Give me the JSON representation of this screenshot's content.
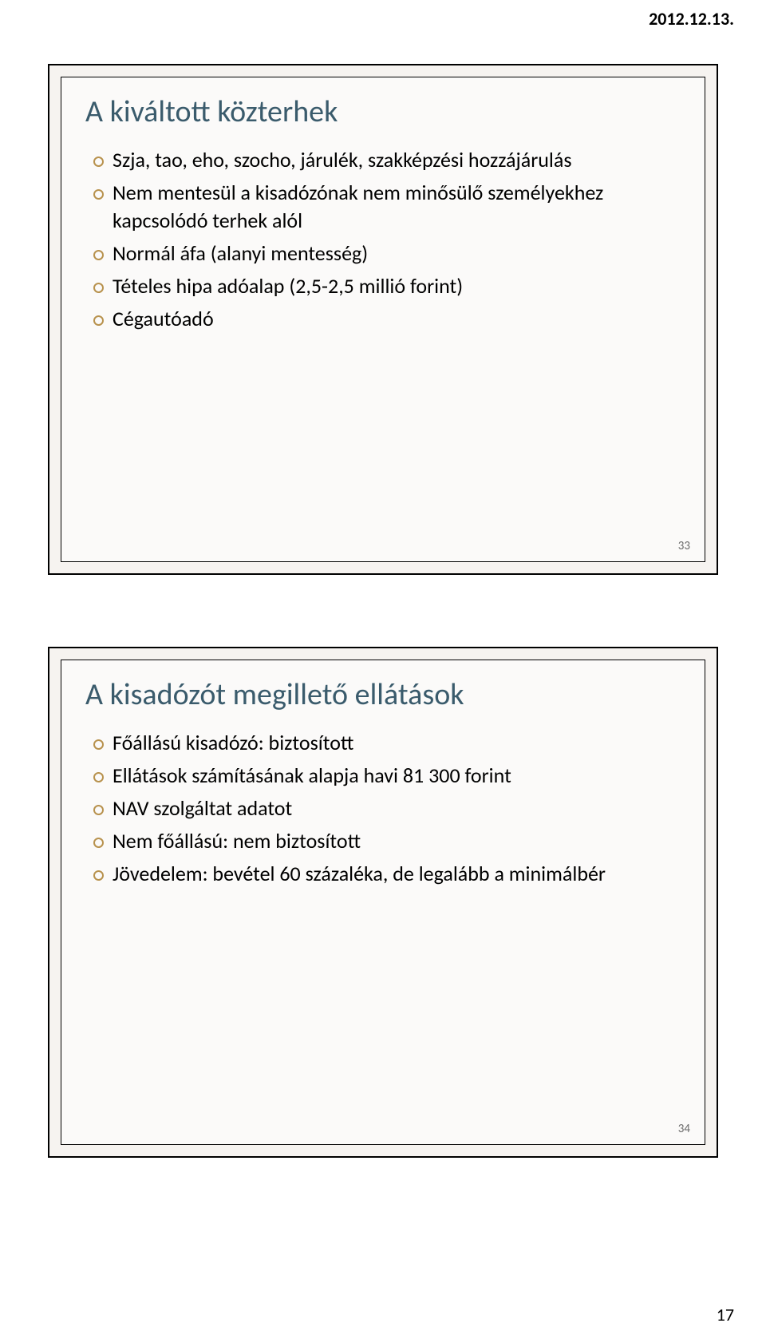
{
  "header": {
    "date": "2012.12.13."
  },
  "footer": {
    "page_number": "17"
  },
  "colors": {
    "title_color": "#3a5b6c",
    "bullet_ring": "#b8924e",
    "slide_outer_bg": "#f6f3f0",
    "slide_inner_bg": "#fbfaf9",
    "text_color": "#000000",
    "slide_number_color": "#6a6a6a"
  },
  "slides": [
    {
      "title": "A kiváltott közterhek",
      "bullets": [
        "Szja, tao, eho, szocho, járulék, szakképzési hozzájárulás",
        "Nem mentesül a kisadózónak nem minősülő személyekhez kapcsolódó terhek alól",
        "Normál áfa (alanyi mentesség)",
        "Tételes hipa adóalap (2,5-2,5 millió forint)",
        "Cégautóadó"
      ],
      "number": "33"
    },
    {
      "title": "A kisadózót megillető ellátások",
      "bullets": [
        "Főállású kisadózó: biztosított",
        "Ellátások számításának alapja havi 81 300 forint",
        "NAV szolgáltat adatot",
        "Nem főállású: nem biztosított",
        "Jövedelem: bevétel 60 százaléka, de legalább a minimálbér"
      ],
      "number": "34"
    }
  ]
}
